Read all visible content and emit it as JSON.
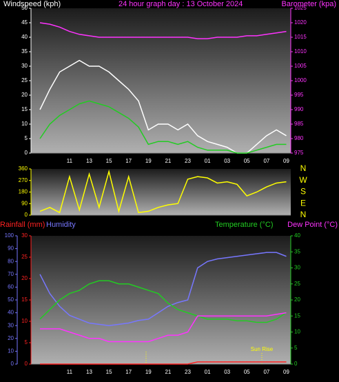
{
  "chart_data": [
    {
      "type": "line",
      "title": "24 hour graph day : 13 October 2024",
      "y_label": "Windspeed (kph)",
      "y2_label": "Barometer (kpa)",
      "categories": [
        null,
        null,
        null,
        "11",
        null,
        "13",
        null,
        "15",
        null,
        "17",
        null,
        "19",
        null,
        "21",
        null,
        "23",
        null,
        "01",
        null,
        "03",
        null,
        "05",
        null,
        "07",
        null,
        "09"
      ],
      "ylim": [
        0,
        50
      ],
      "yticks": [
        0,
        5,
        10,
        15,
        20,
        25,
        30,
        35,
        40,
        45,
        50
      ],
      "y2lim": [
        975,
        1025
      ],
      "y2ticks": [
        975,
        980,
        985,
        990,
        995,
        1000,
        1005,
        1010,
        1015,
        1020,
        1025
      ],
      "series": [
        {
          "color": "#ffffff",
          "values": [
            15,
            22,
            28,
            30,
            32,
            30,
            30,
            28,
            25,
            22,
            18,
            8,
            10,
            10,
            8,
            10,
            6,
            4,
            3,
            2,
            0,
            0,
            3,
            6,
            8,
            6
          ]
        },
        {
          "color": "#22cc22",
          "values": [
            5,
            10,
            13,
            15,
            17,
            18,
            17,
            16,
            14,
            12,
            9,
            3,
            4,
            4,
            3,
            4,
            2,
            1,
            1,
            1,
            0,
            0,
            1,
            2,
            3,
            3
          ]
        },
        {
          "color": "#ff33ff",
          "axis": "y2",
          "values": [
            1020,
            1019.5,
            1018.5,
            1017,
            1016,
            1015.5,
            1015,
            1015,
            1015,
            1015,
            1015,
            1015,
            1015,
            1015,
            1015,
            1015,
            1014.5,
            1014.5,
            1015,
            1015,
            1015,
            1015.5,
            1015.5,
            1016,
            1016.5,
            1017
          ]
        }
      ]
    },
    {
      "type": "line",
      "ylim": [
        0,
        360
      ],
      "yticks": [
        0,
        90,
        180,
        270,
        360
      ],
      "y2lim": [
        0,
        360
      ],
      "y2ticks": [
        {
          "value": 0,
          "label": "N"
        },
        {
          "value": 90,
          "label": "E"
        },
        {
          "value": 180,
          "label": "S"
        },
        {
          "value": 270,
          "label": "W"
        },
        {
          "value": 360,
          "label": "N"
        }
      ],
      "series": [
        {
          "color": "#ffff00",
          "values": [
            30,
            60,
            20,
            300,
            40,
            320,
            60,
            340,
            30,
            300,
            20,
            30,
            60,
            80,
            90,
            280,
            300,
            290,
            250,
            260,
            240,
            150,
            180,
            220,
            250,
            260
          ]
        }
      ]
    },
    {
      "type": "line",
      "y3_label": "Rainfall (mm)",
      "y_label": "Humidity",
      "y2_label": "Temperature (°C)",
      "y2b_label": "Dew Point (°C)",
      "annotation": "Sun Rise",
      "categories": [
        null,
        null,
        null,
        "11",
        null,
        "13",
        null,
        "15",
        null,
        "17",
        null,
        "19",
        null,
        "21",
        null,
        "23",
        null,
        "01",
        null,
        "03",
        null,
        "05",
        null,
        "07",
        null,
        "09"
      ],
      "ylim": [
        0,
        100
      ],
      "yticks": [
        0,
        10,
        20,
        30,
        40,
        50,
        60,
        70,
        80,
        90,
        100
      ],
      "y3lim": [
        0,
        30
      ],
      "y3ticks": [
        0,
        5,
        10,
        15,
        20,
        25,
        30
      ],
      "y2lim": [
        0,
        40
      ],
      "y2ticks": [
        0,
        5,
        10,
        15,
        20,
        25,
        30,
        35,
        40
      ],
      "series": [
        {
          "color": "#7777ff",
          "values": [
            70,
            55,
            45,
            38,
            35,
            32,
            31,
            30,
            31,
            32,
            34,
            35,
            40,
            45,
            48,
            50,
            75,
            80,
            82,
            83,
            84,
            85,
            86,
            87,
            87,
            84
          ]
        },
        {
          "color": "#22cc22",
          "axis": "y2",
          "values": [
            14,
            17,
            20,
            22,
            23,
            25,
            26,
            26,
            25,
            25,
            24,
            23,
            22,
            19,
            17,
            16,
            15,
            14,
            14,
            14,
            13.5,
            13.5,
            13,
            13,
            14,
            16
          ]
        },
        {
          "color": "#ff33ff",
          "axis": "y2",
          "values": [
            11,
            11,
            11,
            10,
            9,
            8,
            8,
            7,
            7,
            7,
            7,
            7,
            8,
            9,
            9,
            10,
            15,
            15,
            15,
            15,
            15,
            15,
            15,
            15,
            15.5,
            16
          ]
        },
        {
          "color": "#ff2222",
          "axis": "y3",
          "values": [
            0,
            0,
            0,
            0,
            0,
            0,
            0,
            0,
            0,
            0,
            0,
            0,
            0,
            0,
            0,
            0,
            0.5,
            0.5,
            0.5,
            0.5,
            0.5,
            0.5,
            0.5,
            0.5,
            0.5,
            0.5
          ]
        }
      ]
    }
  ]
}
